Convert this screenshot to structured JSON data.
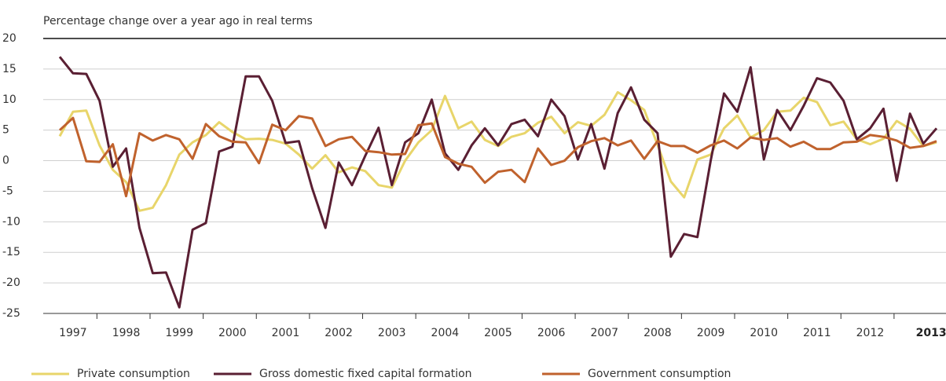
{
  "chart_data": {
    "type": "line",
    "subtitle": "Percentage change over a year ago in real terms",
    "categories": [
      null,
      "1997",
      null,
      null,
      null,
      "1998",
      null,
      null,
      null,
      "1999",
      null,
      null,
      null,
      "2000",
      null,
      null,
      null,
      "2001",
      null,
      null,
      null,
      "2002",
      null,
      null,
      null,
      "2003",
      null,
      null,
      null,
      "2004",
      null,
      null,
      null,
      "2005",
      null,
      null,
      null,
      "2006",
      null,
      null,
      null,
      "2007",
      null,
      null,
      null,
      "2008",
      null,
      null,
      null,
      "2009",
      null,
      null,
      null,
      "2010",
      null,
      null,
      null,
      "2011",
      null,
      null,
      null,
      "2012",
      null,
      null,
      null,
      "2013",
      null
    ],
    "series": [
      {
        "name": "Private consumption",
        "color": "#e8d56a",
        "values": [
          4,
          8,
          8.2,
          2.5,
          -1.5,
          -3.5,
          -8.2,
          -7.7,
          -4,
          1,
          3,
          4.2,
          6.3,
          4.7,
          3.5,
          3.6,
          3.4,
          2.8,
          1,
          -1.3,
          0.9,
          -1.9,
          -1.1,
          -1.7,
          -4,
          -4.4,
          0,
          3,
          5,
          10.6,
          5.3,
          6.4,
          3.4,
          2.4,
          3.9,
          4.5,
          6.2,
          7.2,
          4.5,
          6.3,
          5.7,
          7.5,
          11.2,
          9.9,
          8.3,
          2.6,
          -3.4,
          -6,
          0.2,
          1,
          5.3,
          7.4,
          3.8,
          5,
          8,
          8.2,
          10.3,
          9.6,
          5.8,
          6.4,
          3.5,
          2.7,
          3.6,
          6.5,
          5.2,
          2.4,
          3
        ]
      },
      {
        "name": "Gross domestic fixed capital formation",
        "color": "#5a1f33",
        "values": [
          17,
          14.3,
          14.2,
          9.8,
          -1,
          2,
          -11,
          -18.4,
          -18.3,
          -24,
          -11.3,
          -10.2,
          1.5,
          2.3,
          13.8,
          13.8,
          9.8,
          2.9,
          3.2,
          -4.5,
          -11,
          -0.3,
          -4,
          0.8,
          5.4,
          -4,
          3,
          4.5,
          10,
          1.2,
          -1.5,
          2.5,
          5.3,
          2.5,
          6,
          6.7,
          4,
          10,
          7.3,
          0.2,
          6,
          -1.3,
          7.8,
          12,
          6.7,
          4.5,
          -15.7,
          -12,
          -12.5,
          0,
          11,
          8,
          15.3,
          0.2,
          8.3,
          5,
          9,
          13.5,
          12.8,
          9.8,
          3.5,
          5.3,
          8.5,
          -3.3,
          7.7,
          2.8,
          5.3
        ]
      },
      {
        "name": "Government consumption",
        "color": "#c0622d",
        "values": [
          5,
          7,
          -0.1,
          -0.2,
          2.7,
          -5.8,
          4.5,
          3.3,
          4.2,
          3.5,
          0.3,
          6,
          4,
          3.1,
          3,
          -0.4,
          5.9,
          5,
          7.3,
          6.9,
          2.4,
          3.5,
          3.9,
          1.6,
          1.4,
          1,
          1.1,
          5.8,
          6.1,
          0.6,
          -0.5,
          -1,
          -3.6,
          -1.8,
          -1.5,
          -3.5,
          2,
          -0.7,
          0,
          2.2,
          3.2,
          3.7,
          2.5,
          3.3,
          0.3,
          3.2,
          2.4,
          2.4,
          1.3,
          2.5,
          3.3,
          2,
          3.8,
          3.4,
          3.7,
          2.3,
          3.1,
          1.9,
          1.9,
          3,
          3.1,
          4.2,
          3.9,
          3.3,
          2.1,
          2.4,
          3.2
        ]
      }
    ],
    "ylim": [
      -25,
      20
    ],
    "yticks": [
      -25,
      -20,
      -15,
      -10,
      -5,
      0,
      5,
      10,
      15,
      20
    ],
    "grid": true
  }
}
